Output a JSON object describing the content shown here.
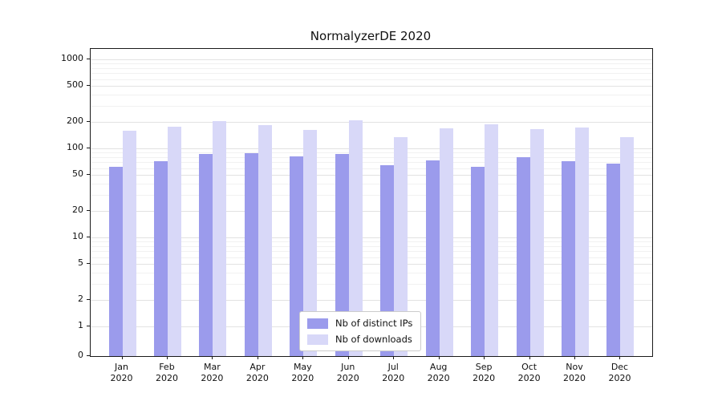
{
  "title": "NormalyzerDE 2020",
  "chart_data": {
    "type": "bar",
    "title": "NormalyzerDE 2020",
    "categories": [
      "Jan",
      "Feb",
      "Mar",
      "Apr",
      "May",
      "Jun",
      "Jul",
      "Aug",
      "Sep",
      "Oct",
      "Nov",
      "Dec"
    ],
    "category_year": "2020",
    "series": [
      {
        "name": "Nb of distinct IPs",
        "color": "#9b9bec",
        "values": [
          62,
          72,
          86,
          88,
          81,
          87,
          65,
          74,
          62,
          80,
          72,
          68
        ]
      },
      {
        "name": "Nb of downloads",
        "color": "#d8d8f8",
        "values": [
          158,
          176,
          204,
          184,
          160,
          208,
          135,
          167,
          186,
          165,
          172,
          134
        ]
      }
    ],
    "yticks": [
      0,
      1,
      2,
      5,
      10,
      20,
      50,
      100,
      200,
      500,
      1000
    ],
    "ylim": [
      0,
      1000
    ],
    "yscale": "symlog",
    "xlabel": "",
    "ylabel": "",
    "grid": true,
    "legend_position": "lower center"
  },
  "colors": {
    "series_distinct_ips": "#9b9bec",
    "series_downloads": "#d8d8f8",
    "grid_major": "#e2e2e2",
    "grid_minor": "#f1f1f1",
    "frame": "#1a1a1a"
  }
}
